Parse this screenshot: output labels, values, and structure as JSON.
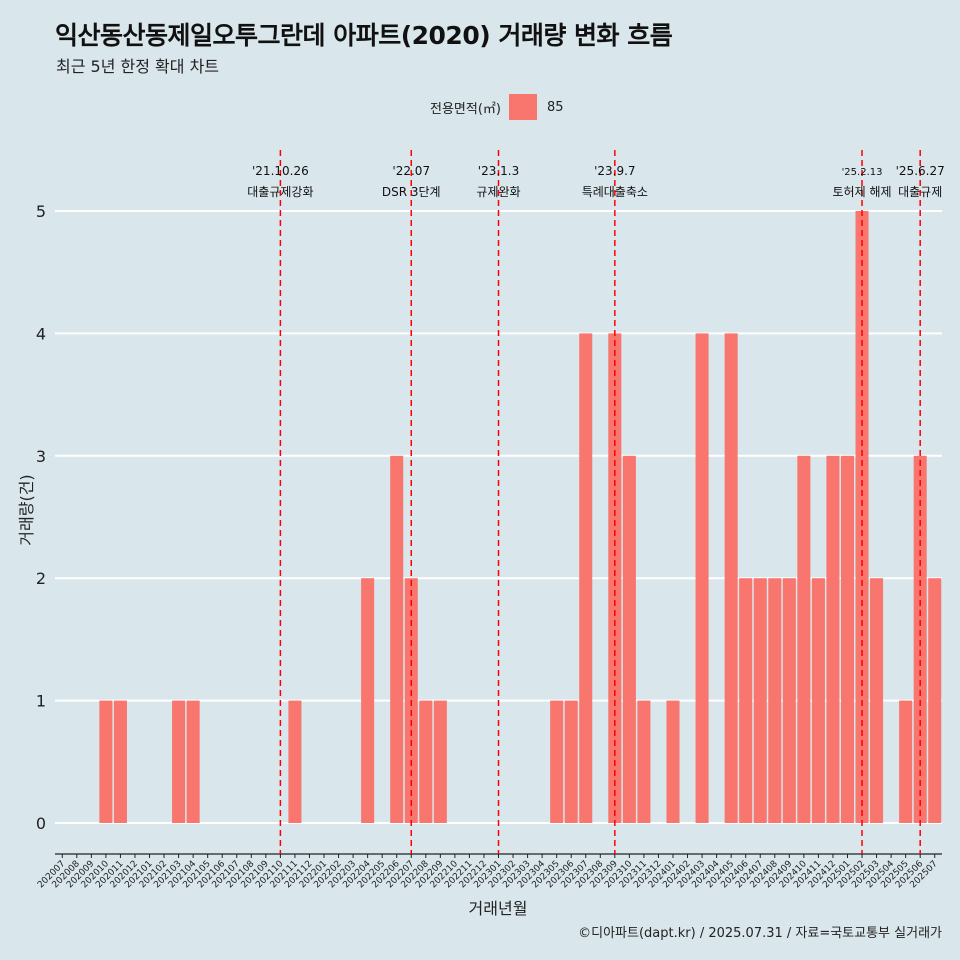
{
  "header": {
    "title": "익산동산동제일오투그란데 아파트(2020) 거래량 변화 흐름",
    "subtitle": "최근 5년 한정 확대 차트"
  },
  "legend": {
    "title": "전용면적(㎡)",
    "items": [
      {
        "label": "85",
        "color": "#f8766d"
      }
    ]
  },
  "caption": "©디아파트(dapt.kr) / 2025.07.31 / 자료=국토교통부 실거래가",
  "chart_data": {
    "type": "bar",
    "title": "익산동산동제일오투그란데 아파트(2020) 거래량 변화 흐름",
    "subtitle": "최근 5년 한정 확대 차트",
    "xlabel": "거래년월",
    "ylabel": "거래량(건)",
    "ylim": [
      0,
      5
    ],
    "yticks": [
      0,
      1,
      2,
      3,
      4,
      5
    ],
    "grid": true,
    "legend_position": "top",
    "categories": [
      "202007",
      "202008",
      "202009",
      "202010",
      "202011",
      "202012",
      "202101",
      "202102",
      "202103",
      "202104",
      "202105",
      "202106",
      "202107",
      "202108",
      "202109",
      "202110",
      "202111",
      "202112",
      "202201",
      "202202",
      "202203",
      "202204",
      "202205",
      "202206",
      "202207",
      "202208",
      "202209",
      "202210",
      "202211",
      "202212",
      "202301",
      "202302",
      "202303",
      "202304",
      "202305",
      "202306",
      "202307",
      "202308",
      "202309",
      "202310",
      "202311",
      "202312",
      "202401",
      "202402",
      "202403",
      "202404",
      "202405",
      "202406",
      "202407",
      "202408",
      "202409",
      "202410",
      "202411",
      "202412",
      "202501",
      "202502",
      "202503",
      "202504",
      "202505",
      "202506",
      "202507"
    ],
    "series": [
      {
        "name": "85",
        "color": "#f8766d",
        "values": [
          0,
          0,
          0,
          1,
          1,
          0,
          0,
          0,
          1,
          1,
          0,
          0,
          0,
          0,
          0,
          0,
          1,
          0,
          0,
          0,
          0,
          2,
          0,
          3,
          2,
          1,
          1,
          0,
          0,
          0,
          0,
          0,
          0,
          0,
          1,
          1,
          4,
          0,
          4,
          3,
          1,
          0,
          1,
          0,
          4,
          0,
          4,
          2,
          2,
          2,
          2,
          3,
          2,
          3,
          3,
          5,
          2,
          0,
          1,
          3,
          2
        ]
      }
    ],
    "annotations": [
      {
        "category": "202110",
        "date": "'21.10.26",
        "label": "대출규제강화"
      },
      {
        "category": "202207",
        "date": "'22.07",
        "label": "DSR 3단계"
      },
      {
        "category": "202301",
        "date": "'23.1.3",
        "label": "규제완화"
      },
      {
        "category": "202309",
        "date": "'23.9.7",
        "label": "특례대출축소"
      },
      {
        "category": "202502",
        "date": "'25.2.13",
        "label": "토허제 해제"
      },
      {
        "category": "202506",
        "date": "'25.6.27",
        "label": "대출규제"
      }
    ]
  }
}
